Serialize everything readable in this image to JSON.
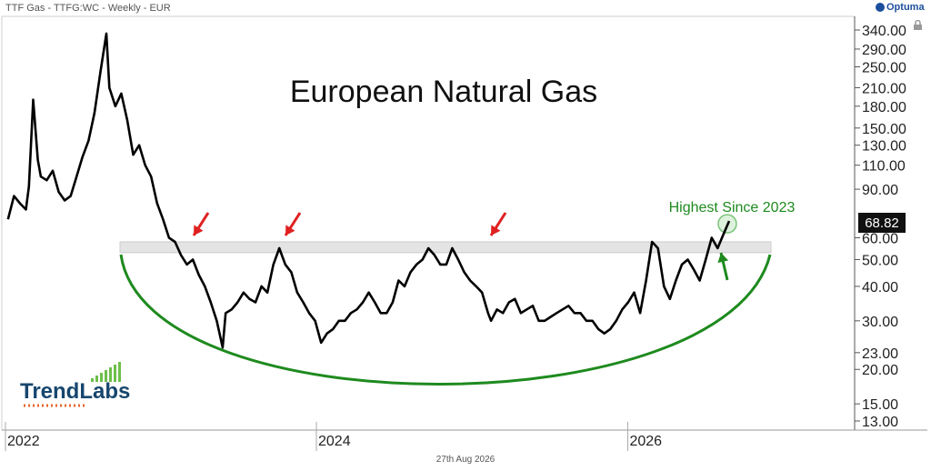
{
  "header": {
    "title": "TTF Gas - TTFG:WC - Weekly - EUR",
    "brand": "Optuma"
  },
  "footer": {
    "date": "27th Aug 2026"
  },
  "branding": {
    "name": "TrendLabs"
  },
  "chart_data": {
    "type": "line",
    "title": "European Natural Gas",
    "annotation": "Highest Since 2023",
    "price_label": "68.82",
    "y_scale": "log",
    "y_ticks": [
      "340.00",
      "290.00",
      "250.00",
      "210.00",
      "180.00",
      "150.00",
      "130.00",
      "110.00",
      "90.00",
      "60.00",
      "50.00",
      "40.00",
      "30.00",
      "23.00",
      "20.00",
      "15.00",
      "13.00"
    ],
    "x_ticks": [
      "2022",
      "2024",
      "2026"
    ],
    "resistance_band": [
      53,
      58
    ],
    "colors": {
      "line": "#000000",
      "base_arc": "#1e8a1e",
      "arrows_red": "#e02020",
      "arrow_green": "#1e8a1e",
      "band": "#e4e4e4"
    },
    "series": [
      {
        "x": [
          "2022-01-07",
          "2022-01-21",
          "2022-02-04",
          "2022-02-18",
          "2022-02-25",
          "2022-03-07",
          "2022-03-18",
          "2022-03-25",
          "2022-04-08",
          "2022-04-22",
          "2022-05-06",
          "2022-05-20",
          "2022-06-03",
          "2022-06-17",
          "2022-07-01",
          "2022-07-15",
          "2022-07-29",
          "2022-08-12",
          "2022-08-26",
          "2022-09-02",
          "2022-09-16",
          "2022-09-30",
          "2022-10-14",
          "2022-10-28",
          "2022-11-11",
          "2022-11-25",
          "2022-12-09",
          "2022-12-23",
          "2023-01-06",
          "2023-01-20",
          "2023-02-03",
          "2023-02-17",
          "2023-03-03",
          "2023-03-17",
          "2023-03-31",
          "2023-04-14",
          "2023-04-28",
          "2023-05-12",
          "2023-05-26",
          "2023-06-02",
          "2023-06-16",
          "2023-06-30",
          "2023-07-14",
          "2023-07-28",
          "2023-08-11",
          "2023-08-25",
          "2023-09-08",
          "2023-09-22",
          "2023-10-06",
          "2023-10-20",
          "2023-11-03",
          "2023-11-17",
          "2023-12-01",
          "2023-12-15",
          "2023-12-29",
          "2024-01-12",
          "2024-01-26",
          "2024-02-09",
          "2024-02-23",
          "2024-03-08",
          "2024-03-22",
          "2024-04-05",
          "2024-04-19",
          "2024-05-03",
          "2024-05-17",
          "2024-05-31",
          "2024-06-14",
          "2024-06-28",
          "2024-07-12",
          "2024-07-26",
          "2024-08-09",
          "2024-08-23",
          "2024-09-06",
          "2024-09-20",
          "2024-10-04",
          "2024-10-18",
          "2024-11-01",
          "2024-11-15",
          "2024-11-29",
          "2024-12-13",
          "2024-12-27",
          "2025-01-10",
          "2025-01-24",
          "2025-02-07",
          "2025-02-14",
          "2025-02-28",
          "2025-03-14",
          "2025-03-28",
          "2025-04-11",
          "2025-04-25",
          "2025-05-09",
          "2025-05-23",
          "2025-06-06",
          "2025-06-20",
          "2025-07-04",
          "2025-07-18",
          "2025-08-01",
          "2025-08-15",
          "2025-08-29",
          "2025-09-12",
          "2025-09-26",
          "2025-10-10",
          "2025-10-24",
          "2025-11-07",
          "2025-11-21",
          "2025-12-05",
          "2025-12-19",
          "2026-01-02",
          "2026-01-16",
          "2026-01-30",
          "2026-02-13",
          "2026-02-27",
          "2026-03-13",
          "2026-03-27",
          "2026-04-10",
          "2026-04-24",
          "2026-05-08",
          "2026-05-22",
          "2026-06-05",
          "2026-06-19",
          "2026-07-03",
          "2026-07-17",
          "2026-07-31",
          "2026-08-14",
          "2026-08-27"
        ],
        "y": [
          70,
          85,
          80,
          76,
          92,
          190,
          115,
          100,
          97,
          105,
          88,
          82,
          85,
          100,
          118,
          135,
          170,
          240,
          330,
          210,
          180,
          200,
          160,
          120,
          130,
          110,
          100,
          80,
          70,
          60,
          58,
          52,
          48,
          50,
          44,
          40,
          35,
          30,
          24,
          32,
          33,
          35,
          38,
          36,
          35,
          40,
          38,
          48,
          55,
          48,
          45,
          38,
          35,
          32,
          30,
          25,
          27,
          28,
          30,
          30,
          32,
          33,
          35,
          38,
          35,
          32,
          32,
          35,
          42,
          40,
          45,
          48,
          50,
          55,
          52,
          48,
          48,
          55,
          50,
          45,
          42,
          40,
          38,
          32,
          30,
          33,
          32,
          35,
          36,
          32,
          33,
          34,
          30,
          30,
          31,
          32,
          33,
          34,
          32,
          32,
          30,
          30,
          28,
          27,
          28,
          30,
          33,
          35,
          38,
          32,
          42,
          58,
          55,
          40,
          36,
          42,
          48,
          50,
          46,
          42,
          50,
          60,
          55,
          62,
          69
        ]
      }
    ]
  }
}
